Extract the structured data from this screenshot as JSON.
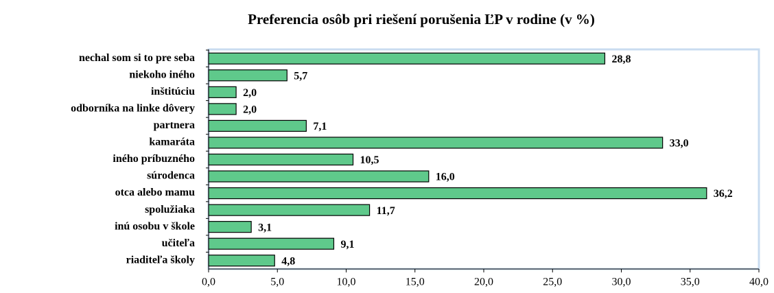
{
  "chart_data": {
    "type": "hbar",
    "title": "Preferencia osôb pri riešení porušenia ĽP v rodine (v %)",
    "categories": [
      "nechal som si to pre seba",
      "niekoho iného",
      "inštitúciu",
      "odborníka na linke dôvery",
      "partnera",
      "kamaráta",
      "iného príbuzného",
      "súrodenca",
      "otca alebo mamu",
      "spolužiaka",
      "inú osobu v škole",
      "učiteľa",
      "riaditeľa školy"
    ],
    "values": [
      28.8,
      5.7,
      2.0,
      2.0,
      7.1,
      33.0,
      10.5,
      16.0,
      36.2,
      11.7,
      3.1,
      9.1,
      4.8
    ],
    "value_labels": [
      "28,8",
      "5,7",
      "2,0",
      "2,0",
      "7,1",
      "33,0",
      "10,5",
      "16,0",
      "36,2",
      "11,7",
      "3,1",
      "9,1",
      "4,8"
    ],
    "color": "#5fc98b",
    "xlim": [
      0,
      40
    ],
    "xticks": [
      {
        "value": 0,
        "label": "0,0"
      },
      {
        "value": 5,
        "label": "5,0"
      },
      {
        "value": 10,
        "label": "10,0"
      },
      {
        "value": 15,
        "label": "15,0"
      },
      {
        "value": 20,
        "label": "20,0"
      },
      {
        "value": 25,
        "label": "25,0"
      },
      {
        "value": 30,
        "label": "30,0"
      },
      {
        "value": 35,
        "label": "35,0"
      },
      {
        "value": 40,
        "label": "40,0"
      }
    ]
  }
}
